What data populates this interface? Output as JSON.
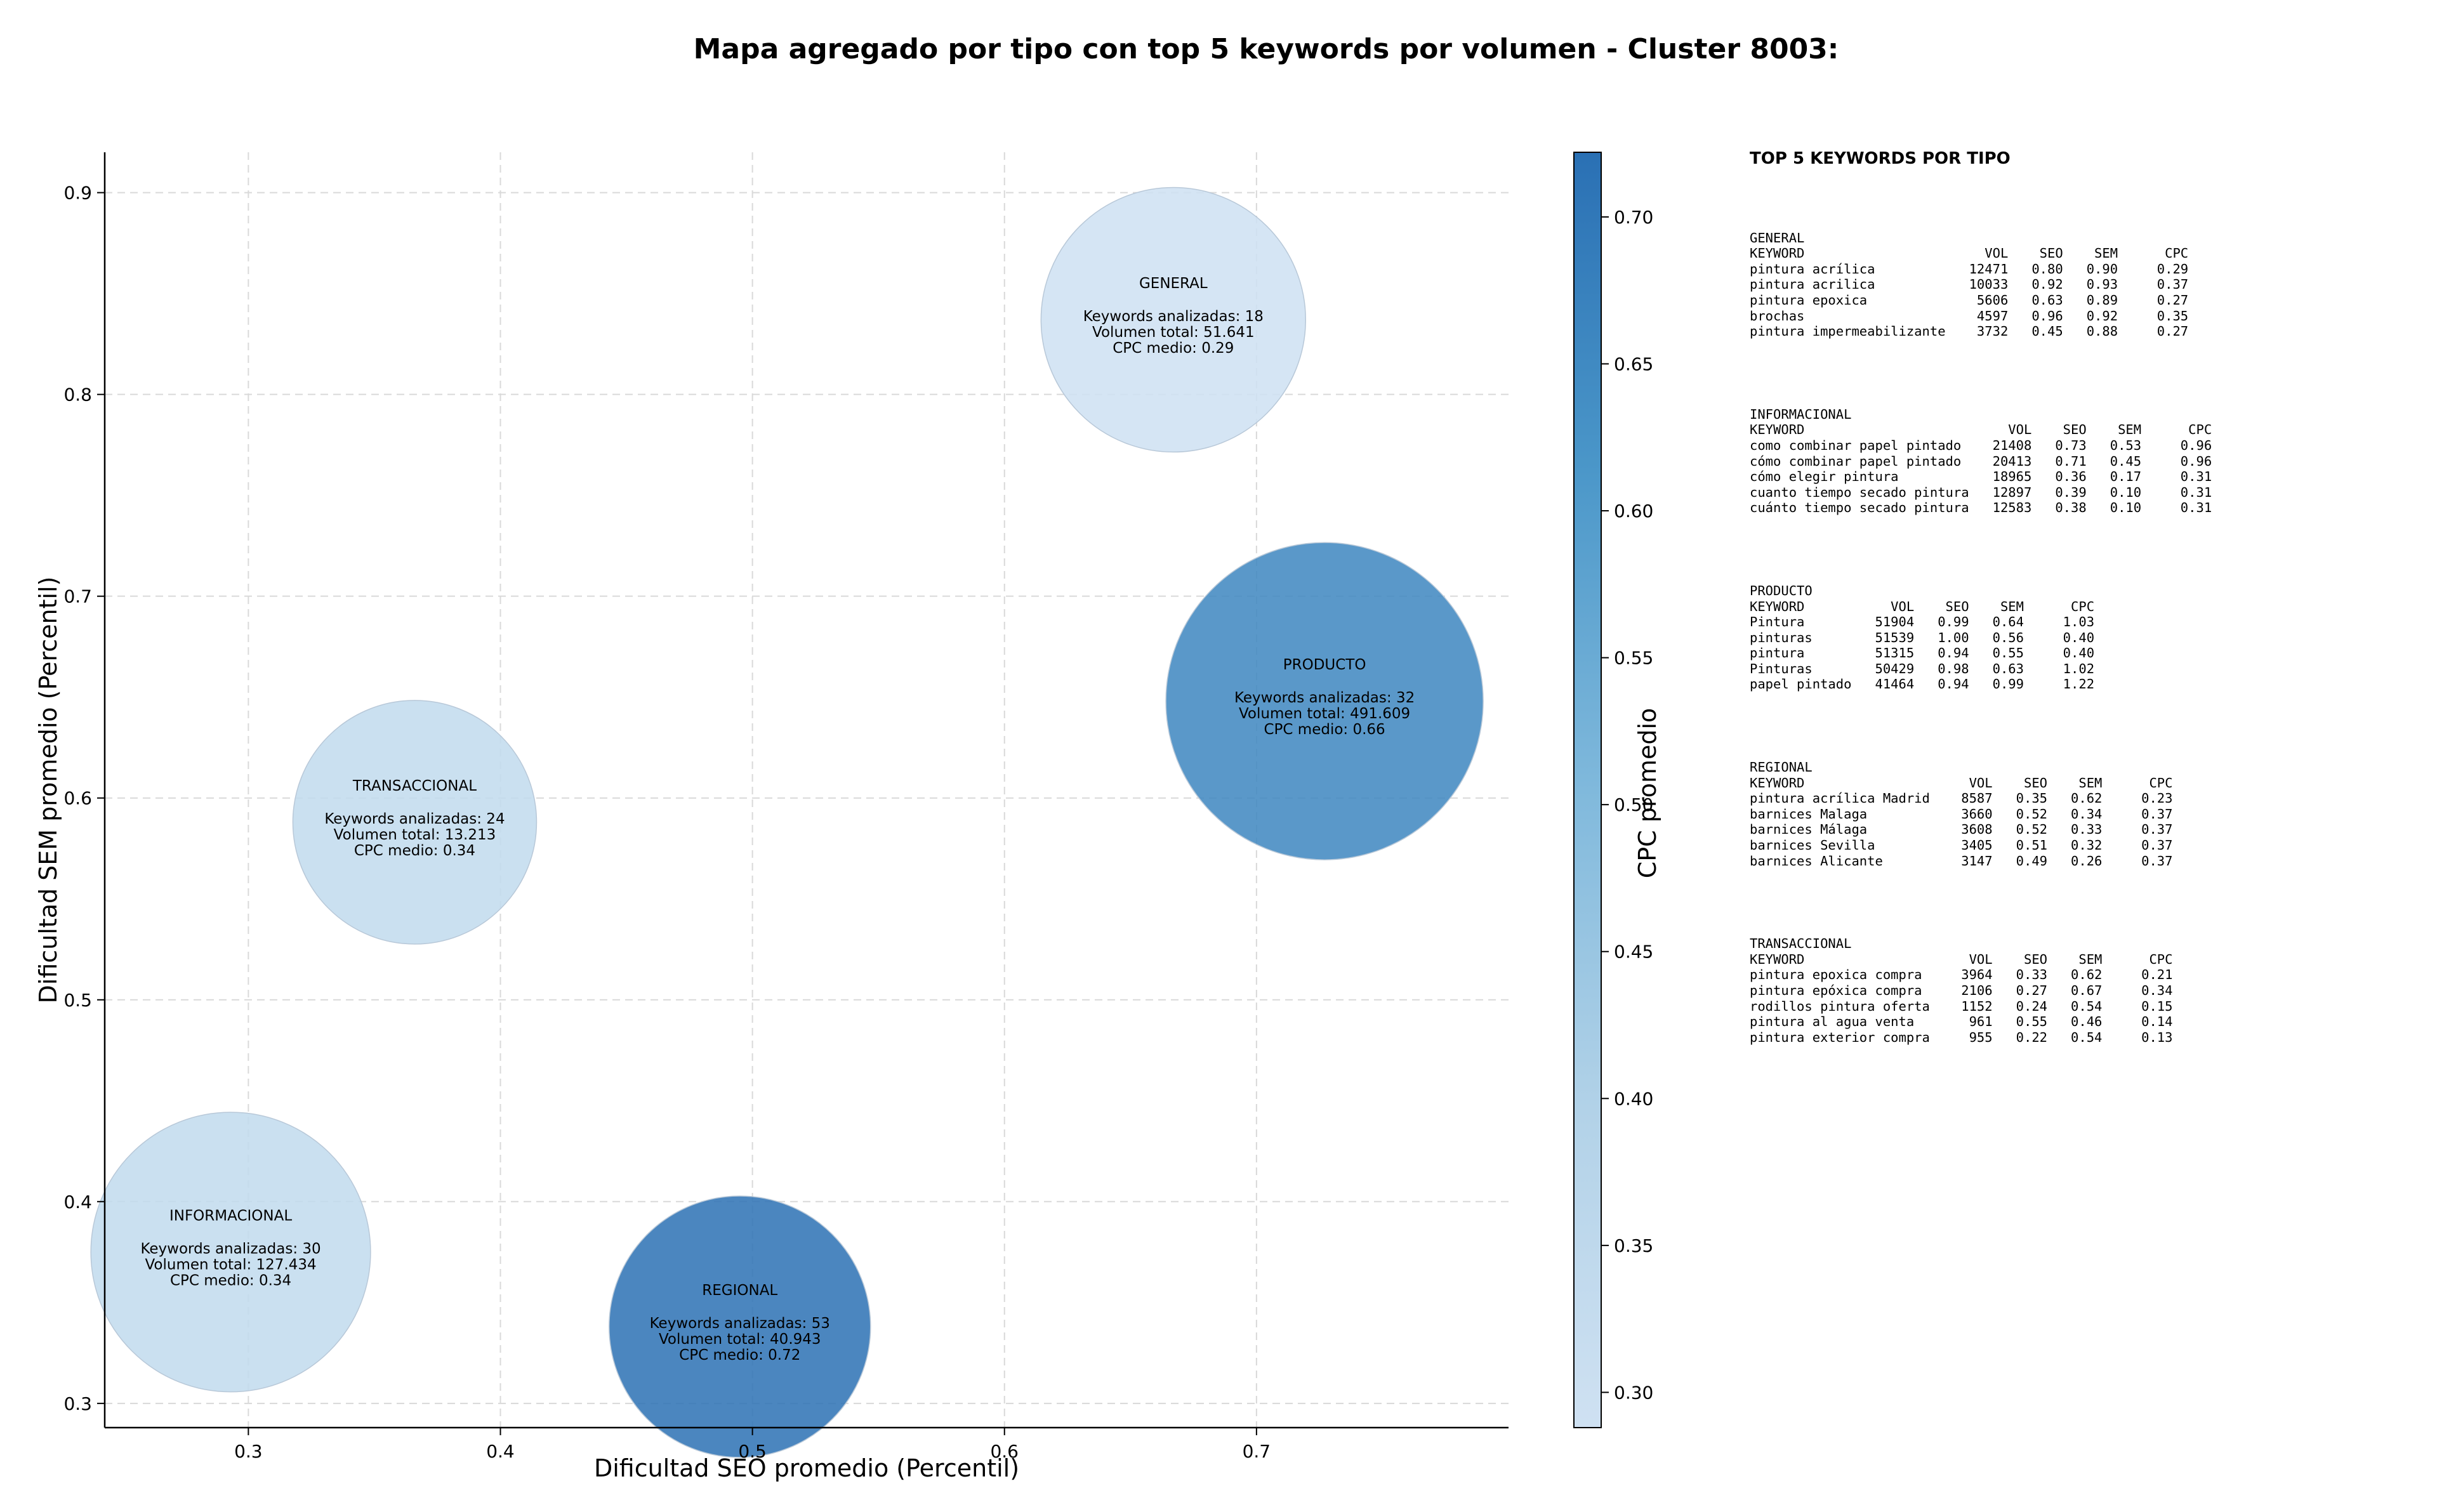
{
  "title": "Mapa agregado por tipo con top 5 keywords por volumen - Cluster 8003:",
  "colors": {
    "low": "#c6dbef",
    "mid": "#6baed6",
    "high": "#2171b5"
  },
  "chart_data": {
    "type": "scatter",
    "xlabel": "Dificultad SEO promedio (Percentil)",
    "ylabel": "Dificultad SEM promedio (Percentil)",
    "xlim": [
      0.243,
      0.8
    ],
    "ylim": [
      0.288,
      0.92
    ],
    "xticks": [
      "0.3",
      "0.4",
      "0.5",
      "0.6",
      "0.7"
    ],
    "yticks": [
      "0.3",
      "0.4",
      "0.5",
      "0.6",
      "0.7",
      "0.8",
      "0.9"
    ],
    "grid": true,
    "colorbar": {
      "label": "CPC promedio",
      "range": [
        0.288,
        0.722
      ],
      "ticks": [
        "0.30",
        "0.35",
        "0.40",
        "0.45",
        "0.50",
        "0.55",
        "0.60",
        "0.65",
        "0.70"
      ]
    },
    "points": [
      {
        "label": "GENERAL",
        "x": 0.667,
        "y": 0.837,
        "keywords": 18,
        "volume": 51641,
        "cpc": 0.29,
        "line1": "Keywords analizadas: 18",
        "line2": "Volumen total: 51.641",
        "line3": "CPC medio: 0.29"
      },
      {
        "label": "PRODUCTO",
        "x": 0.727,
        "y": 0.648,
        "keywords": 32,
        "volume": 491609,
        "cpc": 0.66,
        "line1": "Keywords analizadas: 32",
        "line2": "Volumen total: 491.609",
        "line3": "CPC medio: 0.66"
      },
      {
        "label": "TRANSACCIONAL",
        "x": 0.366,
        "y": 0.588,
        "keywords": 24,
        "volume": 13213,
        "cpc": 0.34,
        "line1": "Keywords analizadas: 24",
        "line2": "Volumen total: 13.213",
        "line3": "CPC medio: 0.34"
      },
      {
        "label": "INFORMACIONAL",
        "x": 0.293,
        "y": 0.375,
        "keywords": 30,
        "volume": 127434,
        "cpc": 0.34,
        "line1": "Keywords analizadas: 30",
        "line2": "Volumen total: 127.434",
        "line3": "CPC medio: 0.34"
      },
      {
        "label": "REGIONAL",
        "x": 0.495,
        "y": 0.338,
        "keywords": 53,
        "volume": 40943,
        "cpc": 0.72,
        "line1": "Keywords analizadas: 53",
        "line2": "Volumen total: 40.943",
        "line3": "CPC medio: 0.72"
      }
    ]
  },
  "panel": {
    "title": "TOP 5 KEYWORDS POR TIPO",
    "blocks": [
      {
        "lines": [
          "GENERAL",
          "KEYWORD                       VOL    SEO    SEM      CPC",
          "pintura acrílica            12471   0.80   0.90     0.29",
          "pintura acrilica            10033   0.92   0.93     0.37",
          "pintura epoxica              5606   0.63   0.89     0.27",
          "brochas                      4597   0.96   0.92     0.35",
          "pintura impermeabilizante    3732   0.45   0.88     0.27"
        ]
      },
      {
        "lines": [
          "INFORMACIONAL",
          "KEYWORD                          VOL    SEO    SEM      CPC",
          "como combinar papel pintado    21408   0.73   0.53     0.96",
          "cómo combinar papel pintado    20413   0.71   0.45     0.96",
          "cómo elegir pintura            18965   0.36   0.17     0.31",
          "cuanto tiempo secado pintura   12897   0.39   0.10     0.31",
          "cuánto tiempo secado pintura   12583   0.38   0.10     0.31"
        ]
      },
      {
        "lines": [
          "PRODUCTO",
          "KEYWORD           VOL    SEO    SEM      CPC",
          "Pintura         51904   0.99   0.64     1.03",
          "pinturas        51539   1.00   0.56     0.40",
          "pintura         51315   0.94   0.55     0.40",
          "Pinturas        50429   0.98   0.63     1.02",
          "papel pintado   41464   0.94   0.99     1.22"
        ]
      },
      {
        "lines": [
          "REGIONAL",
          "KEYWORD                     VOL    SEO    SEM      CPC",
          "pintura acrílica Madrid    8587   0.35   0.62     0.23",
          "barnices Malaga            3660   0.52   0.34     0.37",
          "barnices Málaga            3608   0.52   0.33     0.37",
          "barnices Sevilla           3405   0.51   0.32     0.37",
          "barnices Alicante          3147   0.49   0.26     0.37"
        ]
      },
      {
        "lines": [
          "TRANSACCIONAL",
          "KEYWORD                     VOL    SEO    SEM      CPC",
          "pintura epoxica compra     3964   0.33   0.62     0.21",
          "pintura epóxica compra     2106   0.27   0.67     0.34",
          "rodillos pintura oferta    1152   0.24   0.54     0.15",
          "pintura al agua venta       961   0.55   0.46     0.14",
          "pintura exterior compra     955   0.22   0.54     0.13"
        ]
      }
    ]
  }
}
